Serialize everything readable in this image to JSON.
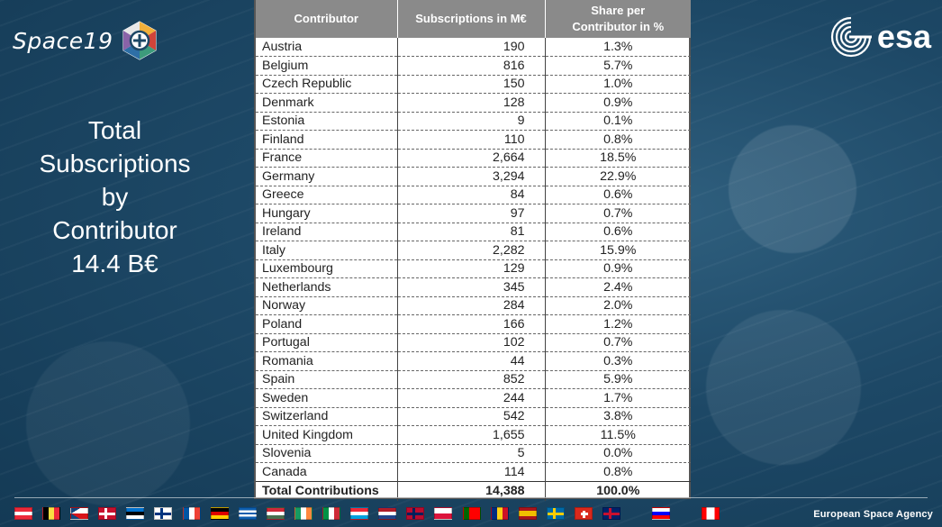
{
  "branding": {
    "space19_label": "Space19",
    "esa_label": "esa",
    "agency_label": "European Space Agency"
  },
  "side_title": {
    "line1": "Total",
    "line2": "Subscriptions",
    "line3": "by",
    "line4": "Contributor",
    "line5": "14.4 B€"
  },
  "table": {
    "headers": {
      "contributor": "Contributor",
      "subscriptions": "Subscriptions in M€",
      "share_line1": "Share per",
      "share_line2": "Contributor in %"
    },
    "rows": [
      {
        "contributor": "Austria",
        "subscriptions": "190",
        "share": "1.3%"
      },
      {
        "contributor": "Belgium",
        "subscriptions": "816",
        "share": "5.7%"
      },
      {
        "contributor": "Czech Republic",
        "subscriptions": "150",
        "share": "1.0%"
      },
      {
        "contributor": "Denmark",
        "subscriptions": "128",
        "share": "0.9%"
      },
      {
        "contributor": "Estonia",
        "subscriptions": "9",
        "share": "0.1%"
      },
      {
        "contributor": "Finland",
        "subscriptions": "110",
        "share": "0.8%"
      },
      {
        "contributor": "France",
        "subscriptions": "2,664",
        "share": "18.5%"
      },
      {
        "contributor": "Germany",
        "subscriptions": "3,294",
        "share": "22.9%"
      },
      {
        "contributor": "Greece",
        "subscriptions": "84",
        "share": "0.6%"
      },
      {
        "contributor": "Hungary",
        "subscriptions": "97",
        "share": "0.7%"
      },
      {
        "contributor": "Ireland",
        "subscriptions": "81",
        "share": "0.6%"
      },
      {
        "contributor": "Italy",
        "subscriptions": "2,282",
        "share": "15.9%"
      },
      {
        "contributor": "Luxembourg",
        "subscriptions": "129",
        "share": "0.9%"
      },
      {
        "contributor": "Netherlands",
        "subscriptions": "345",
        "share": "2.4%"
      },
      {
        "contributor": "Norway",
        "subscriptions": "284",
        "share": "2.0%"
      },
      {
        "contributor": "Poland",
        "subscriptions": "166",
        "share": "1.2%"
      },
      {
        "contributor": "Portugal",
        "subscriptions": "102",
        "share": "0.7%"
      },
      {
        "contributor": "Romania",
        "subscriptions": "44",
        "share": "0.3%"
      },
      {
        "contributor": "Spain",
        "subscriptions": "852",
        "share": "5.9%"
      },
      {
        "contributor": "Sweden",
        "subscriptions": "244",
        "share": "1.7%"
      },
      {
        "contributor": "Switzerland",
        "subscriptions": "542",
        "share": "3.8%"
      },
      {
        "contributor": "United Kingdom",
        "subscriptions": "1,655",
        "share": "11.5%"
      },
      {
        "contributor": "Slovenia",
        "subscriptions": "5",
        "share": "0.0%"
      },
      {
        "contributor": "Canada",
        "subscriptions": "114",
        "share": "0.8%"
      }
    ],
    "total": {
      "contributor": "Total Contributions",
      "subscriptions": "14,388",
      "share": "100.0%"
    }
  },
  "flags": [
    {
      "country": "Austria",
      "colors": [
        "#ed2939",
        "#ffffff",
        "#ed2939"
      ],
      "dir": "h"
    },
    {
      "country": "Belgium",
      "colors": [
        "#000000",
        "#fae042",
        "#ed2939"
      ],
      "dir": "v"
    },
    {
      "country": "Czech Republic",
      "colors": [
        "#ffffff",
        "#d7141a"
      ],
      "dir": "h",
      "tri": "#11457e"
    },
    {
      "country": "Denmark",
      "colors": [
        "#c8102e"
      ],
      "cross": "#ffffff"
    },
    {
      "country": "Estonia",
      "colors": [
        "#0072ce",
        "#000000",
        "#ffffff"
      ],
      "dir": "h"
    },
    {
      "country": "Finland",
      "colors": [
        "#ffffff"
      ],
      "cross": "#003580"
    },
    {
      "country": "France",
      "colors": [
        "#0055a4",
        "#ffffff",
        "#ef4135"
      ],
      "dir": "v"
    },
    {
      "country": "Germany",
      "colors": [
        "#000000",
        "#dd0000",
        "#ffce00"
      ],
      "dir": "h"
    },
    {
      "country": "Greece",
      "colors": [
        "#0d5eaf",
        "#ffffff",
        "#0d5eaf",
        "#ffffff",
        "#0d5eaf"
      ],
      "dir": "h"
    },
    {
      "country": "Hungary",
      "colors": [
        "#ce2939",
        "#ffffff",
        "#477050"
      ],
      "dir": "h"
    },
    {
      "country": "Ireland",
      "colors": [
        "#169b62",
        "#ffffff",
        "#ff883e"
      ],
      "dir": "v"
    },
    {
      "country": "Italy",
      "colors": [
        "#009246",
        "#ffffff",
        "#ce2b37"
      ],
      "dir": "v"
    },
    {
      "country": "Luxembourg",
      "colors": [
        "#ed2939",
        "#ffffff",
        "#00a1de"
      ],
      "dir": "h"
    },
    {
      "country": "Netherlands",
      "colors": [
        "#ae1c28",
        "#ffffff",
        "#21468b"
      ],
      "dir": "h"
    },
    {
      "country": "Norway",
      "colors": [
        "#ba0c2f"
      ],
      "cross": "#00205b"
    },
    {
      "country": "Poland",
      "colors": [
        "#ffffff",
        "#dc143c"
      ],
      "dir": "h"
    },
    {
      "country": "Portugal",
      "colors": [
        "#006600",
        "#ff0000",
        "#ff0000"
      ],
      "dir": "v"
    },
    {
      "country": "Romania",
      "colors": [
        "#002b7f",
        "#fcd116",
        "#ce1126"
      ],
      "dir": "v"
    },
    {
      "country": "Spain",
      "colors": [
        "#aa151b",
        "#f1bf00",
        "#f1bf00",
        "#aa151b"
      ],
      "dir": "h"
    },
    {
      "country": "Sweden",
      "colors": [
        "#006aa7"
      ],
      "cross": "#fecc00"
    },
    {
      "country": "Switzerland",
      "colors": [
        "#da291c"
      ],
      "plus": "#ffffff"
    },
    {
      "country": "United Kingdom",
      "colors": [
        "#012169"
      ],
      "cross": "#c8102e"
    },
    {
      "country": "Slovenia",
      "colors": [
        "#ffffff",
        "#0000ff",
        "#ff0000"
      ],
      "dir": "h"
    },
    {
      "country": "Canada",
      "colors": [
        "#ff0000",
        "#ffffff",
        "#ffffff",
        "#ff0000"
      ],
      "dir": "v"
    }
  ]
}
